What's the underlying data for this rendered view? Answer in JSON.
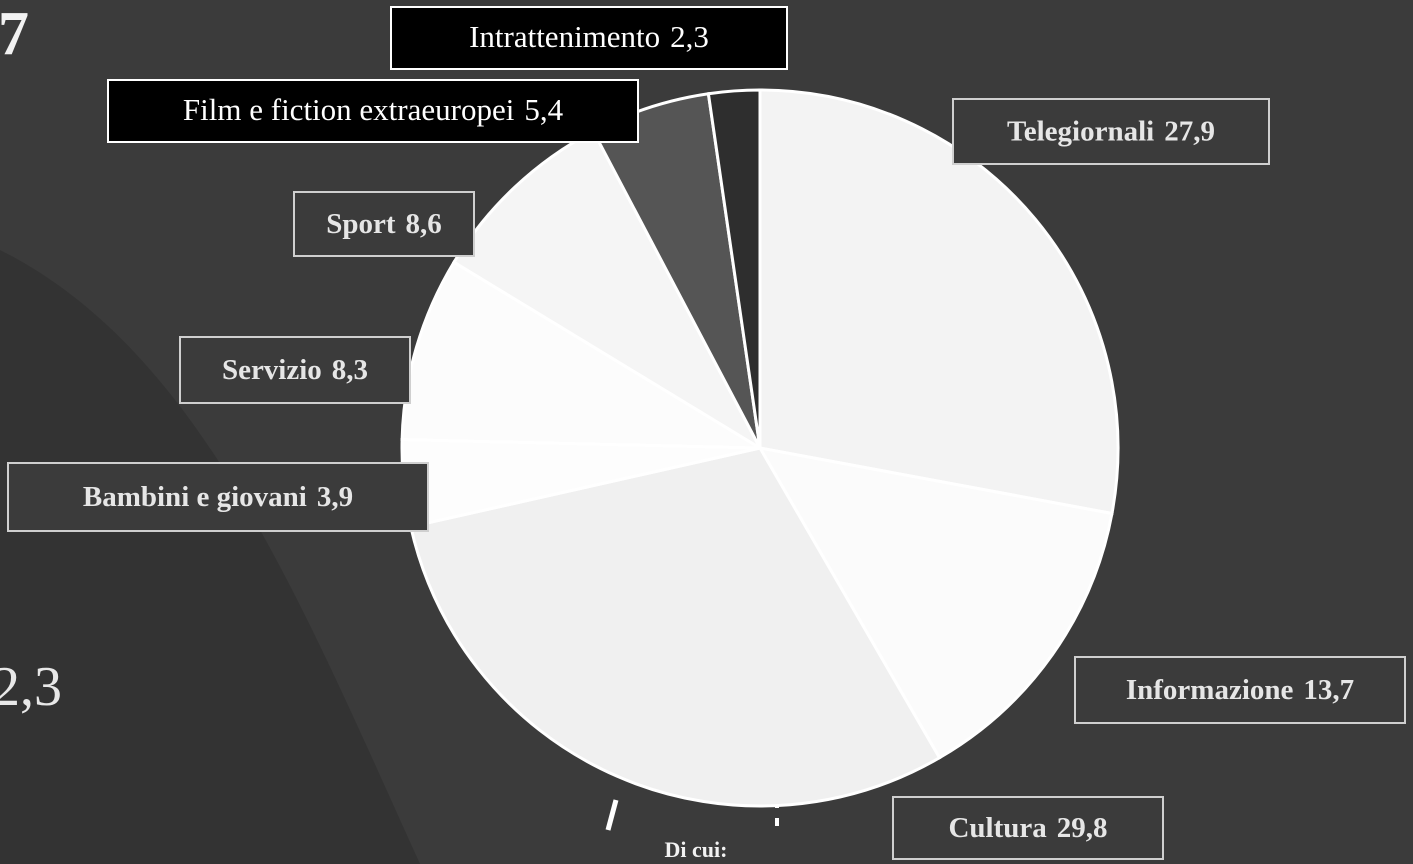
{
  "chart_data": {
    "type": "pie",
    "categories": [
      "Telegiornali",
      "Informazione",
      "Cultura",
      "Bambini e giovani",
      "Servizio",
      "Sport",
      "Film e fiction extraeuropei",
      "Intrattenimento"
    ],
    "values": [
      27.9,
      13.7,
      29.8,
      3.9,
      8.3,
      8.6,
      5.4,
      2.3
    ],
    "value_labels": [
      "27,9",
      "13,7",
      "29,8",
      "3,9",
      "8,3",
      "8,6",
      "5,4",
      "2,3"
    ],
    "colors": [
      "#f3f3f3",
      "#fbfbfb",
      "#f0f0f0",
      "#fdfdfd",
      "#fcfcfc",
      "#f5f5f5",
      "#555555",
      "#2e2e2e"
    ],
    "annotations": [
      "7",
      "2,3",
      "Di cui:"
    ]
  }
}
